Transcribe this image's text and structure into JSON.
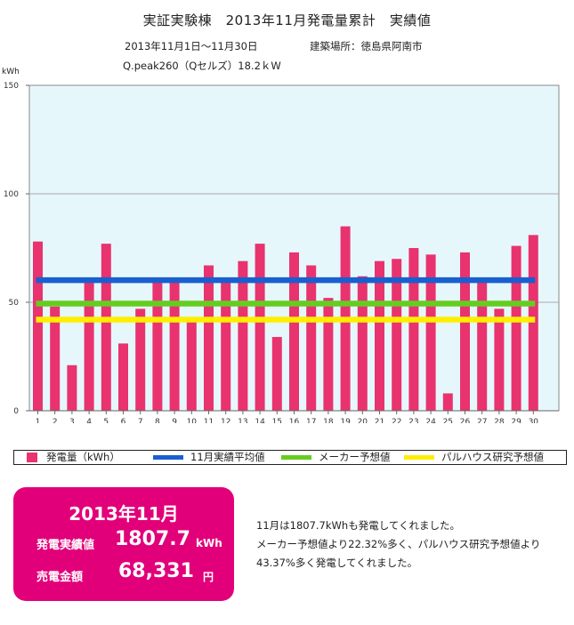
{
  "header": {
    "title": "実証実験棟　2013年11月発電量累計　実績値",
    "period": "2013年11月1日〜11月30日",
    "location": "建築場所：徳島県阿南市",
    "system": "Q.peak260（Qセルズ）18.2ｋW"
  },
  "chart_data": {
    "type": "bar",
    "ylabel": "kWh",
    "ylim": [
      0,
      150
    ],
    "yticks": [
      0,
      50,
      100,
      150
    ],
    "grid": true,
    "categories": [
      "1",
      "2",
      "3",
      "4",
      "5",
      "6",
      "7",
      "8",
      "9",
      "10",
      "11",
      "12",
      "13",
      "14",
      "15",
      "16",
      "17",
      "18",
      "19",
      "20",
      "21",
      "22",
      "23",
      "24",
      "25",
      "26",
      "27",
      "28",
      "29",
      "30"
    ],
    "series": [
      {
        "name": "発電量（kWh）",
        "color": "#e8336e",
        "values": [
          78,
          48,
          21,
          59,
          77,
          31,
          47,
          59,
          59,
          42,
          67,
          59,
          69,
          77,
          34,
          73,
          67,
          52,
          85,
          62,
          69,
          70,
          75,
          72,
          8,
          73,
          59,
          47,
          76,
          81
        ]
      }
    ],
    "reference_lines": [
      {
        "name": "11月実績平均値",
        "value": 60.2,
        "color": "#1a5fcf"
      },
      {
        "name": "メーカー予想値",
        "value": 49.4,
        "color": "#66cc22"
      },
      {
        "name": "パルハウス研究予想値",
        "value": 42.0,
        "color": "#ffee00"
      }
    ]
  },
  "summary": {
    "title": "2013年11月",
    "gen_label": "発電実績値",
    "gen_value": "1807.7",
    "gen_unit": "kWh",
    "sale_label": "売電金額",
    "sale_value": "68,331",
    "sale_unit": "円"
  },
  "message": {
    "line1": "11月は1807.7kWhも発電してくれました。",
    "line2": "メーカー予想値より22.32%多く、パルハウス研究予想値より",
    "line3": "43.37%多く発電してくれました。"
  }
}
